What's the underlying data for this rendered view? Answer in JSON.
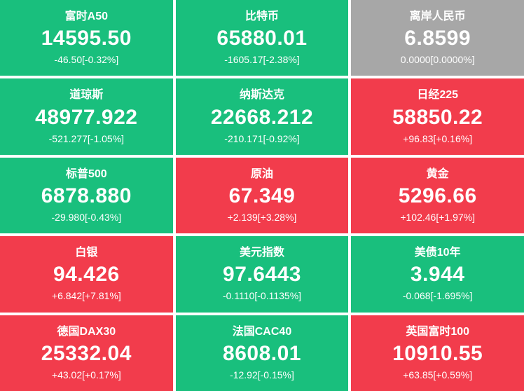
{
  "colors": {
    "up": "#f23c4c",
    "down": "#19bf7d",
    "flat": "#a7a7a7",
    "text": "#ffffff",
    "gap": "#ffffff"
  },
  "tiles": [
    {
      "name": "富时A50",
      "value": "14595.50",
      "change": "-46.50[-0.32%]",
      "state": "down"
    },
    {
      "name": "比特币",
      "value": "65880.01",
      "change": "-1605.17[-2.38%]",
      "state": "down"
    },
    {
      "name": "离岸人民币",
      "value": "6.8599",
      "change": "0.0000[0.0000%]",
      "state": "flat"
    },
    {
      "name": "道琼斯",
      "value": "48977.922",
      "change": "-521.277[-1.05%]",
      "state": "down"
    },
    {
      "name": "纳斯达克",
      "value": "22668.212",
      "change": "-210.171[-0.92%]",
      "state": "down"
    },
    {
      "name": "日经225",
      "value": "58850.22",
      "change": "+96.83[+0.16%]",
      "state": "up"
    },
    {
      "name": "标普500",
      "value": "6878.880",
      "change": "-29.980[-0.43%]",
      "state": "down"
    },
    {
      "name": "原油",
      "value": "67.349",
      "change": "+2.139[+3.28%]",
      "state": "up"
    },
    {
      "name": "黄金",
      "value": "5296.66",
      "change": "+102.46[+1.97%]",
      "state": "up"
    },
    {
      "name": "白银",
      "value": "94.426",
      "change": "+6.842[+7.81%]",
      "state": "up"
    },
    {
      "name": "美元指数",
      "value": "97.6443",
      "change": "-0.1110[-0.1135%]",
      "state": "down"
    },
    {
      "name": "美债10年",
      "value": "3.944",
      "change": "-0.068[-1.695%]",
      "state": "down"
    },
    {
      "name": "德国DAX30",
      "value": "25332.04",
      "change": "+43.02[+0.17%]",
      "state": "up"
    },
    {
      "name": "法国CAC40",
      "value": "8608.01",
      "change": "-12.92[-0.15%]",
      "state": "down"
    },
    {
      "name": "英国富时100",
      "value": "10910.55",
      "change": "+63.85[+0.59%]",
      "state": "up"
    }
  ]
}
